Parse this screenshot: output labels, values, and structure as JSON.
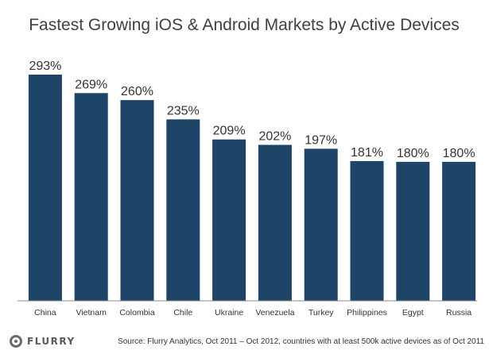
{
  "chart_data": {
    "type": "bar",
    "title": "Fastest Growing iOS & Android Markets by Active Devices",
    "categories": [
      "China",
      "Vietnam",
      "Colombia",
      "Chile",
      "Ukraine",
      "Venezuela",
      "Turkey",
      "Philippines",
      "Egypt",
      "Russia"
    ],
    "values": [
      293,
      269,
      260,
      235,
      209,
      202,
      197,
      181,
      180,
      180
    ],
    "value_labels": [
      "293%",
      "269%",
      "260%",
      "235%",
      "209%",
      "202%",
      "197%",
      "181%",
      "180%",
      "180%"
    ],
    "unit": "%",
    "xlabel": "",
    "ylabel": "",
    "ylim": [
      0,
      300
    ],
    "grid": false,
    "legend": "none",
    "bar_color": "#1e4468",
    "axis_color": "#888888"
  },
  "footer": {
    "logo_text": "FLURRY",
    "source": "Source: Flurry Analytics, Oct 2011 – Oct 2012, countries with at least 500k active devices as of Oct 2011"
  }
}
